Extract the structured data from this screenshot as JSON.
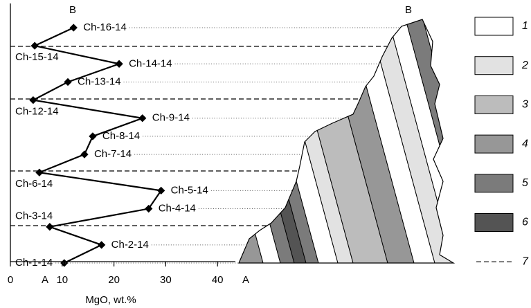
{
  "chart_data": {
    "type": "line",
    "xlabel": "MgO, wt.%",
    "section_labels": [
      "A",
      "B"
    ],
    "categories": [
      "Ch-1-14",
      "Ch-2-14",
      "Ch-3-14",
      "Ch-4-14",
      "Ch-5-14",
      "Ch-6-14",
      "Ch-7-14",
      "Ch-8-14",
      "Ch-9-14",
      "Ch-12-14",
      "Ch-13-14",
      "Ch-14-14",
      "Ch-15-14",
      "Ch-16-14"
    ],
    "values": [
      10.4,
      17.6,
      7.6,
      26.7,
      29.1,
      5.6,
      14.3,
      15.9,
      25.5,
      4.4,
      11.1,
      21,
      4.7,
      12.2
    ],
    "color": "#000000",
    "xlim": [
      0,
      43
    ],
    "xticks": [
      0,
      10,
      20,
      30,
      40
    ],
    "legend": [
      {
        "label": "1",
        "color": "#ffffff"
      },
      {
        "label": "2",
        "color": "#e2e2e2"
      },
      {
        "label": "3",
        "color": "#bcbcbc"
      },
      {
        "label": "4",
        "color": "#979797"
      },
      {
        "label": "5",
        "color": "#7b7b7b"
      },
      {
        "label": "6",
        "color": "#545454"
      },
      {
        "label": "7",
        "style": "dashed"
      }
    ]
  }
}
